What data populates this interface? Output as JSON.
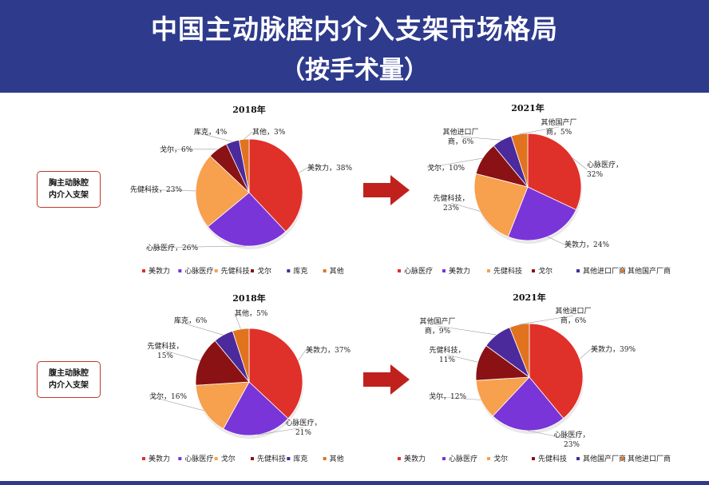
{
  "header": {
    "title": "中国主动脉腔内介入支架市场格局",
    "subtitle": "（按手术量）"
  },
  "segments": {
    "thoracic": [
      "胸主动脉腔",
      "内介入支架"
    ],
    "abdominal": [
      "腹主动脉腔",
      "内介入支架"
    ]
  },
  "chart_data": [
    {
      "type": "pie",
      "title": "2018年",
      "categories": [
        "美敦力",
        "心脉医疗",
        "先健科技",
        "戈尔",
        "库克",
        "其他"
      ],
      "values": [
        38,
        26,
        23,
        6,
        4,
        3
      ],
      "labels": [
        "美敦力，38%",
        "心脉医疗，26%",
        "先健科技，23%",
        "戈尔，6%",
        "库克，4%",
        "其他，3%"
      ],
      "colors": [
        "#e0302a",
        "#7a35d8",
        "#f7a04e",
        "#8a1214",
        "#4b2a9c",
        "#e1731f"
      ],
      "legend": [
        "美敦力",
        "心脉医疗",
        "先健科技",
        "戈尔",
        "库克",
        "其他"
      ],
      "legend_placement": "bottom"
    },
    {
      "type": "pie",
      "title": "2021年",
      "categories": [
        "心脉医疗",
        "美敦力",
        "先健科技",
        "戈尔",
        "其他进口厂商",
        "其他国产厂商"
      ],
      "values": [
        32,
        24,
        23,
        10,
        6,
        5
      ],
      "labels": [
        "心脉医疗，\n32%",
        "美敦力，24%",
        "先健科技，\n23%",
        "戈尔，10%",
        "其他进口厂\n商，6%",
        "其他国产厂\n商，5%"
      ],
      "colors": [
        "#e0302a",
        "#7a35d8",
        "#f7a04e",
        "#8a1214",
        "#4b2a9c",
        "#e1731f"
      ],
      "legend": [
        "心脉医疗",
        "美敦力",
        "先健科技",
        "戈尔",
        "其他进口厂商",
        "其他国产厂商"
      ],
      "legend_placement": "bottom"
    },
    {
      "type": "pie",
      "title": "2018年",
      "categories": [
        "美敦力",
        "心脉医疗",
        "戈尔",
        "先健科技",
        "库克",
        "其他"
      ],
      "values": [
        37,
        21,
        16,
        15,
        6,
        5
      ],
      "labels": [
        "美敦力，37%",
        "心脉医疗，\n21%",
        "戈尔，16%",
        "先健科技，\n15%",
        "库克，6%",
        "其他，5%"
      ],
      "colors": [
        "#e0302a",
        "#7a35d8",
        "#f7a04e",
        "#8a1214",
        "#4b2a9c",
        "#e1731f"
      ],
      "legend": [
        "美敦力",
        "心脉医疗",
        "戈尔",
        "先健科技",
        "库克",
        "其他"
      ],
      "legend_placement": "bottom"
    },
    {
      "type": "pie",
      "title": "2021年",
      "categories": [
        "美敦力",
        "心脉医疗",
        "戈尔",
        "先健科技",
        "其他国产厂商",
        "其他进口厂商"
      ],
      "values": [
        39,
        23,
        12,
        11,
        9,
        6
      ],
      "labels": [
        "美敦力，39%",
        "心脉医疗，\n23%",
        "戈尔，12%",
        "先健科技，\n11%",
        "其他国产厂\n商，9%",
        "其他进口厂\n商，6%"
      ],
      "colors": [
        "#e0302a",
        "#7a35d8",
        "#f7a04e",
        "#8a1214",
        "#4b2a9c",
        "#e1731f"
      ],
      "legend": [
        "美敦力",
        "心脉医疗",
        "戈尔",
        "先健科技",
        "其他国产厂商",
        "其他进口厂商"
      ],
      "legend_placement": "bottom"
    }
  ]
}
